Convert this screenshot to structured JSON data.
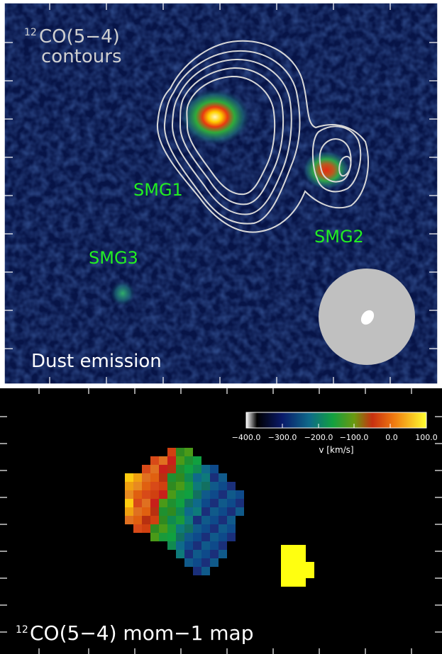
{
  "top_panel": {
    "contour_label_line1": "CO(5−4)",
    "contour_label_sup": "12",
    "contour_label_line2": "contours",
    "panel_label": "Dust emission",
    "sources": [
      "SMG1",
      "SMG2",
      "SMG3"
    ],
    "colors": {
      "label": "#cfcfcf",
      "source": "#22ee22",
      "contour": "#d8d8d8",
      "beam": "#c0c0c0"
    }
  },
  "bottom_panel": {
    "panel_label_sup": "12",
    "panel_label": "CO(5−4) mom−1 map",
    "colorbar": {
      "title": "v [km/s]",
      "ticks": [
        "−400.0",
        "−300.0",
        "−200.0",
        "−100.0",
        "0.0",
        "100.0"
      ],
      "range": [
        -400,
        100
      ]
    }
  }
}
